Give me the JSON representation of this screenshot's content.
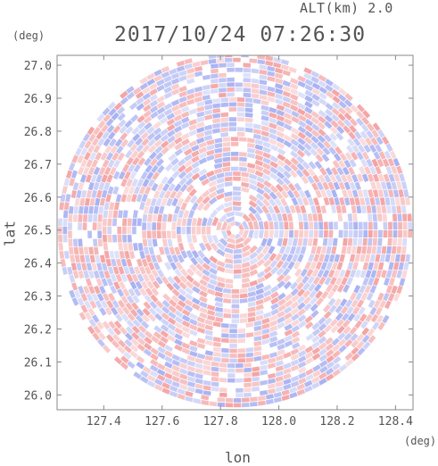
{
  "header": {
    "altitude_label": "ALT(km) 2.0",
    "timestamp": "2017/10/24 07:26:30"
  },
  "axes": {
    "y_unit": "(deg)",
    "x_unit": "(deg)",
    "xlabel": "lon",
    "ylabel": "lat"
  },
  "chart_data": {
    "type": "heatmap",
    "title": "2017/10/24 07:26:30",
    "subtitle": "ALT(km) 2.0",
    "xlabel": "lon",
    "ylabel": "lat",
    "xlim": [
      127.24,
      128.46
    ],
    "ylim": [
      25.955,
      27.03
    ],
    "xticks": [
      "127.4",
      "127.6",
      "127.8",
      "128.0",
      "128.2",
      "128.4"
    ],
    "xtick_values": [
      127.4,
      127.6,
      127.8,
      128.0,
      128.2,
      128.4
    ],
    "yticks": [
      "26.0",
      "26.1",
      "26.2",
      "26.3",
      "26.4",
      "26.5",
      "26.6",
      "26.7",
      "26.8",
      "26.9",
      "27.0"
    ],
    "ytick_values": [
      26.0,
      26.1,
      26.2,
      26.3,
      26.4,
      26.5,
      26.6,
      26.7,
      26.8,
      26.9,
      27.0
    ],
    "center": {
      "lon": 127.85,
      "lat": 26.5
    },
    "radius_deg_lat": 0.54,
    "colors": {
      "positive": "#f4a3a3",
      "negative": "#a9b2f2",
      "neutral": "#ffffff",
      "axis": "#888888",
      "text": "#555555"
    },
    "grid": false,
    "legend": "none"
  }
}
